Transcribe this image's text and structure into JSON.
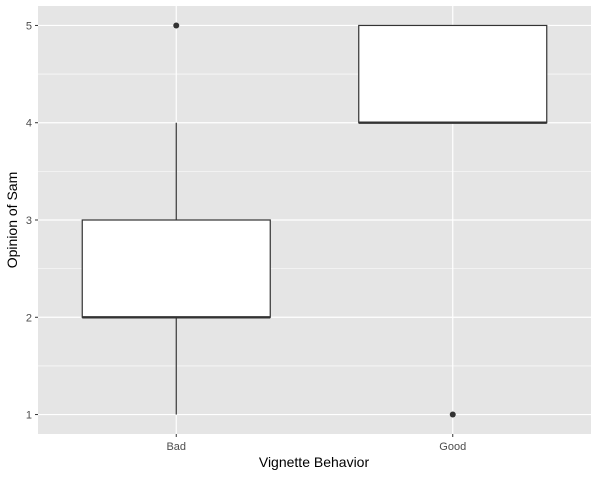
{
  "chart_data": {
    "type": "boxplot",
    "title": "",
    "xlabel": "Vignette Behavior",
    "ylabel": "Opinion of Sam",
    "categories": [
      "Bad",
      "Good"
    ],
    "ylim": [
      0.8,
      5.2
    ],
    "yticks": [
      1,
      2,
      3,
      4,
      5
    ],
    "grid": true,
    "background": "#e5e5e5",
    "gridline_color": "#ffffff",
    "box_fill": "#ffffff",
    "line_color": "#333333",
    "boxes": [
      {
        "category": "Bad",
        "whisker_low": 1,
        "q1": 2,
        "median": 2,
        "q3": 3,
        "whisker_high": 4,
        "outliers": [
          5
        ]
      },
      {
        "category": "Good",
        "whisker_low": 4,
        "q1": 4,
        "median": 4,
        "q3": 5,
        "whisker_high": 5,
        "outliers": [
          1
        ]
      }
    ]
  }
}
